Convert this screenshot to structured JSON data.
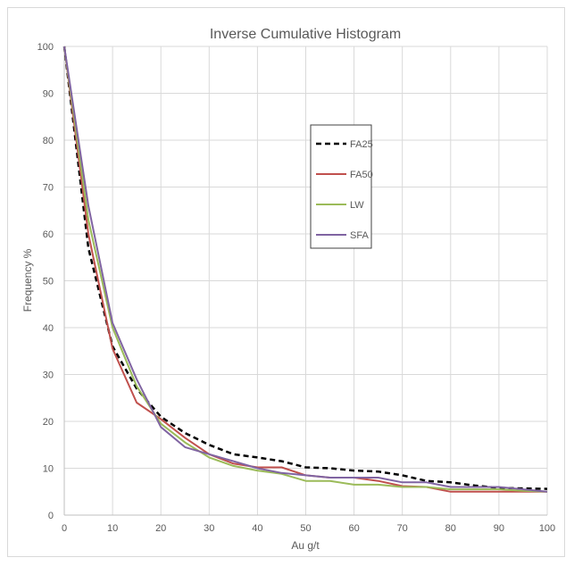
{
  "chart_data": {
    "type": "line",
    "title": "Inverse Cumulative Histogram",
    "xlabel": "Au g/t",
    "ylabel": "Frequency %",
    "xlim": [
      0,
      100
    ],
    "ylim": [
      0,
      100
    ],
    "x_ticks": [
      0,
      10,
      20,
      30,
      40,
      50,
      60,
      70,
      80,
      90,
      100
    ],
    "y_ticks": [
      0,
      10,
      20,
      30,
      40,
      50,
      60,
      70,
      80,
      90,
      100
    ],
    "grid": true,
    "legend_position": "right",
    "series": [
      {
        "name": "FA25",
        "color": "#000000",
        "dash": true,
        "x": [
          0,
          5,
          10,
          15,
          20,
          25,
          30,
          35,
          40,
          45,
          50,
          55,
          60,
          65,
          70,
          75,
          80,
          85,
          90,
          95,
          100
        ],
        "y": [
          100,
          57,
          36,
          27,
          21,
          17.5,
          15,
          13,
          12.3,
          11.5,
          10.2,
          10,
          9.5,
          9.3,
          8.5,
          7.3,
          7,
          6.3,
          5.8,
          5.7,
          5.6
        ]
      },
      {
        "name": "FA50",
        "color": "#c0504d",
        "dash": false,
        "x": [
          0,
          5,
          10,
          15,
          20,
          25,
          30,
          35,
          40,
          45,
          50,
          55,
          60,
          65,
          70,
          75,
          80,
          85,
          90,
          95,
          100
        ],
        "y": [
          100,
          60,
          35.5,
          24,
          20.5,
          16.5,
          13,
          11,
          10.2,
          10.2,
          8.5,
          8,
          8,
          7.3,
          6.2,
          6,
          5,
          5,
          5,
          5,
          5
        ]
      },
      {
        "name": "LW",
        "color": "#9bbb59",
        "dash": false,
        "x": [
          0,
          5,
          10,
          15,
          20,
          25,
          30,
          35,
          40,
          45,
          50,
          55,
          60,
          65,
          70,
          75,
          80,
          85,
          90,
          95,
          100
        ],
        "y": [
          100,
          63,
          40,
          27.5,
          19.5,
          15.5,
          12.3,
          10.5,
          9.5,
          8.8,
          7.3,
          7.3,
          6.5,
          6.5,
          6,
          6,
          5.5,
          5.5,
          5.5,
          5.2,
          5
        ]
      },
      {
        "name": "SFA",
        "color": "#8064a2",
        "dash": false,
        "x": [
          0,
          5,
          10,
          15,
          20,
          25,
          30,
          35,
          40,
          45,
          50,
          55,
          60,
          65,
          70,
          75,
          80,
          85,
          90,
          95,
          100
        ],
        "y": [
          100,
          66,
          41,
          29,
          18.8,
          14.5,
          13,
          11.5,
          10,
          9,
          8.5,
          8,
          8,
          8,
          7,
          7,
          6,
          6,
          6,
          5.5,
          5
        ]
      }
    ]
  }
}
